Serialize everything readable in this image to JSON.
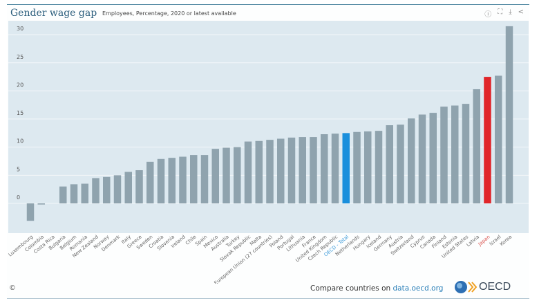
{
  "header": {
    "title": "Gender wage gap",
    "subtitle": "Employees, Percentage, 2020 or latest available",
    "icons": [
      "info-icon",
      "fullscreen-icon",
      "download-icon",
      "share-icon"
    ]
  },
  "footer": {
    "copyright": "©",
    "compare_text": "Compare countries on ",
    "link_text": "data.oecd.org",
    "logo_text": "OECD"
  },
  "colors": {
    "plot_bg": "#dde9f0",
    "bar": "#8fa3ae",
    "oecd": "#1a8fdc",
    "japan": "#e0262a",
    "oecd_label": "#3b9ad9",
    "japan_label": "#d9534f"
  },
  "chart_data": {
    "type": "bar",
    "title": "Gender wage gap",
    "subtitle": "Employees, Percentage, 2020 or latest available",
    "ylim": [
      -5,
      32
    ],
    "yticks": [
      0,
      5,
      10,
      15,
      20,
      25,
      30
    ],
    "grid": true,
    "categories": [
      "Luxembourg",
      "Colombia",
      "Costa Rica",
      "Bulgaria",
      "Belgium",
      "Romania",
      "New Zealand",
      "Norway",
      "Denmark",
      "Italy",
      "Greece",
      "Sweden",
      "Croatia",
      "Slovenia",
      "Ireland",
      "Chile",
      "Spain",
      "Mexico",
      "Australia",
      "Turkey",
      "Slovak Republic",
      "Malta",
      "European Union (27 countries)",
      "Poland",
      "Portugal",
      "Lithuania",
      "France",
      "United Kingdom",
      "Czech Republic",
      "OECD - Total",
      "Netherlands",
      "Hungary",
      "Iceland",
      "Germany",
      "Austria",
      "Switzerland",
      "Cyprus",
      "Canada",
      "Finland",
      "Estonia",
      "United States",
      "Latvia",
      "Japan",
      "Israel",
      "Korea"
    ],
    "values": [
      -3.1,
      -0.2,
      0,
      3.0,
      3.4,
      3.5,
      4.5,
      4.7,
      5.0,
      5.6,
      5.9,
      7.4,
      7.9,
      8.1,
      8.3,
      8.6,
      8.6,
      9.7,
      9.9,
      10.0,
      11.0,
      11.1,
      11.3,
      11.5,
      11.7,
      11.8,
      11.8,
      12.3,
      12.4,
      12.5,
      12.7,
      12.8,
      12.9,
      13.9,
      14.0,
      15.1,
      15.8,
      16.1,
      17.2,
      17.4,
      17.7,
      20.3,
      22.5,
      22.7,
      31.5
    ],
    "highlight": {
      "OECD - Total": "oecd",
      "Japan": "japan"
    }
  }
}
